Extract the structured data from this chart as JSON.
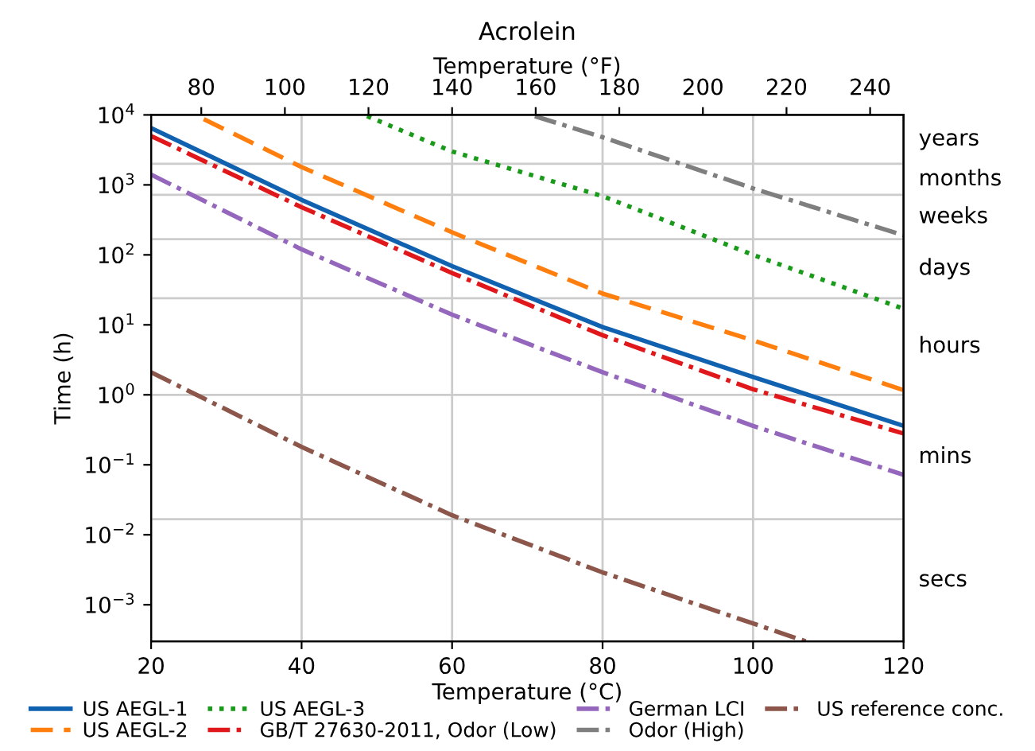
{
  "chart_data": {
    "type": "line",
    "title": "Acrolein",
    "xlabel": "Temperature (°C)",
    "ylabel": "Time (h)",
    "x2label": "Temperature (°F)",
    "xlim": [
      20,
      120
    ],
    "xticks": [
      20,
      40,
      60,
      80,
      100,
      120
    ],
    "x2lim": [
      68,
      248
    ],
    "x2ticks": [
      80,
      100,
      120,
      140,
      160,
      180,
      200,
      220,
      240
    ],
    "log": "y",
    "ylim": [
      0.0003,
      10000
    ],
    "yticks": [
      {
        "value": 0.001,
        "label": "10$^{−3}$"
      },
      {
        "value": 0.01,
        "label": "10$^{−2}$"
      },
      {
        "value": 0.1,
        "label": "10$^{−1}$"
      },
      {
        "value": 1,
        "label": "10$^{0}$"
      },
      {
        "value": 10,
        "label": "10$^{1}$"
      },
      {
        "value": 100,
        "label": "10$^{2}$"
      },
      {
        "value": 1000,
        "label": "10$^{3}$"
      },
      {
        "value": 10000,
        "label": "10$^{4}$"
      }
    ],
    "grid": "x",
    "legend": "bottom",
    "ref_lines": [
      {
        "axis": "y",
        "value": 0.0167,
        "color": "#cccccc"
      },
      {
        "axis": "y",
        "value": 1,
        "color": "#cccccc"
      },
      {
        "axis": "y",
        "value": 24,
        "color": "#cccccc"
      },
      {
        "axis": "y",
        "value": 168,
        "color": "#cccccc"
      },
      {
        "axis": "y",
        "value": 720,
        "color": "#cccccc"
      },
      {
        "axis": "y",
        "value": 2000,
        "color": "#cccccc"
      }
    ],
    "annotations": [
      "secs",
      "mins",
      "hours",
      "days",
      "weeks",
      "months",
      "years"
    ],
    "series": [
      {
        "name": "US AEGL-1",
        "color": "#1061b0",
        "line_style": "solid",
        "x": [
          20,
          40,
          60,
          80,
          100,
          120
        ],
        "values": [
          6500,
          610,
          69,
          9.3,
          1.8,
          0.36
        ]
      },
      {
        "name": "US AEGL-2",
        "color": "#ff7f0e",
        "line_style": "dashed",
        "x": [
          27,
          40,
          60,
          80,
          100,
          120
        ],
        "values": [
          8700,
          1800,
          210,
          28,
          6.0,
          1.17
        ]
      },
      {
        "name": "US AEGL-3",
        "color": "#1a9a1a",
        "line_style": "dotted",
        "x": [
          48.7,
          60,
          80,
          100,
          120
        ],
        "values": [
          9600,
          3000,
          690,
          100,
          17
        ]
      },
      {
        "name": "GB/T 27630-2011, Odor (Low)",
        "color": "#e0181b",
        "line_style": "dashdot",
        "x": [
          20,
          40,
          60,
          80,
          100,
          120
        ],
        "values": [
          5000,
          480,
          55,
          7.1,
          1.2,
          0.28
        ]
      },
      {
        "name": "German LCI",
        "color": "#9467bd",
        "line_style": "dashdot",
        "x": [
          20,
          40,
          60,
          80,
          100,
          120
        ],
        "values": [
          1400,
          120,
          14,
          2.1,
          0.36,
          0.072
        ]
      },
      {
        "name": "Odor (High)",
        "color": "#7f7f7f",
        "line_style": "dashdot",
        "x": [
          71,
          80,
          100,
          120
        ],
        "values": [
          9600,
          4800,
          890,
          190
        ]
      },
      {
        "name": "US reference conc.",
        "color": "#8c564b",
        "line_style": "dashdot",
        "x": [
          20,
          40,
          60,
          80,
          100,
          107
        ],
        "values": [
          2.1,
          0.18,
          0.019,
          0.0029,
          0.00054,
          0.0003
        ]
      }
    ]
  }
}
